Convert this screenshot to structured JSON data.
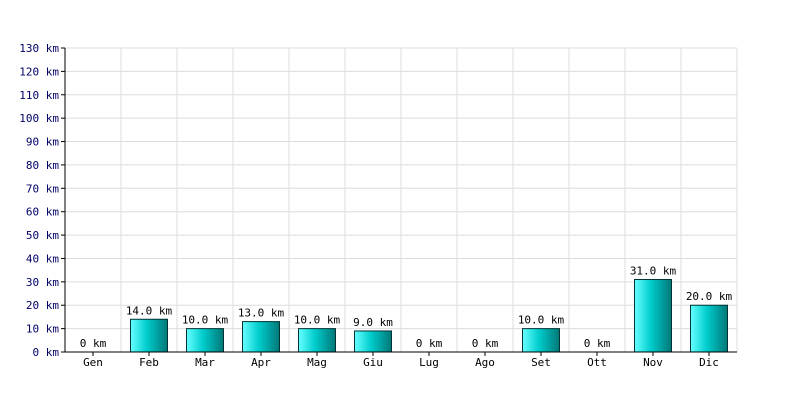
{
  "chart_data": {
    "type": "bar",
    "categories": [
      "Gen",
      "Feb",
      "Mar",
      "Apr",
      "Mag",
      "Giu",
      "Lug",
      "Ago",
      "Set",
      "Ott",
      "Nov",
      "Dic"
    ],
    "values": [
      0,
      14,
      10,
      13,
      10,
      9,
      0,
      0,
      10,
      0,
      31,
      20
    ],
    "data_labels": [
      "0 km",
      "14.0 km",
      "10.0 km",
      "13.0 km",
      "10.0 km",
      "9.0 km",
      "0 km",
      "0 km",
      "10.0 km",
      "0 km",
      "31.0 km",
      "20.0 km"
    ],
    "y_ticks": [
      0,
      10,
      20,
      30,
      40,
      50,
      60,
      70,
      80,
      90,
      100,
      110,
      120,
      130
    ],
    "y_tick_labels": [
      "0 km",
      "10 km",
      "20 km",
      "30 km",
      "40 km",
      "50 km",
      "60 km",
      "70 km",
      "80 km",
      "90 km",
      "100 km",
      "110 km",
      "120 km",
      "130 km"
    ],
    "ylim": [
      0,
      130
    ],
    "grid": true,
    "colors": {
      "bar_light": "#66ffff",
      "bar_mid": "#00cccc",
      "bar_dark": "#007777",
      "bar_outline": "#003333",
      "grid": "#dddddd",
      "axis": "#000000"
    }
  }
}
